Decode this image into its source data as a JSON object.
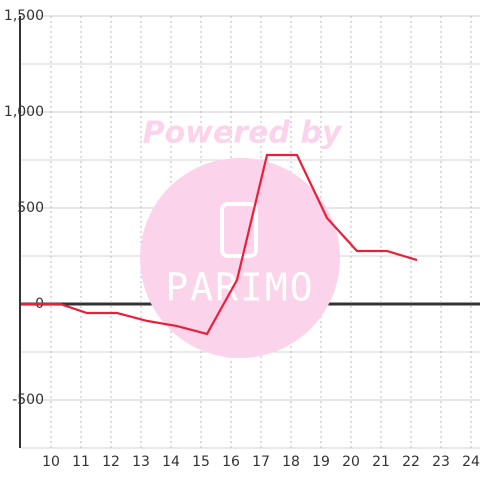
{
  "chart_data": {
    "type": "line",
    "watermark": "Powered by",
    "watermark_logo": "PARIMO",
    "x": [
      9,
      10.3,
      11.2,
      12.2,
      13.2,
      14.2,
      15.2,
      16.2,
      17.2,
      18.2,
      19.2,
      20.2,
      21.2,
      22.2
    ],
    "series": [
      {
        "color": "#e8203a",
        "values": [
          0,
          0,
          -47,
          -47,
          -88,
          -115,
          -156,
          125,
          776,
          776,
          448,
          276,
          276,
          229
        ]
      }
    ],
    "xlim": [
      9,
      24.3
    ],
    "xticks": [
      10,
      11,
      12,
      13,
      14,
      15,
      16,
      17,
      18,
      19,
      20,
      21,
      22,
      23,
      24
    ],
    "ylim": [
      -750,
      1500
    ],
    "yticks": [
      {
        "value": -500,
        "label": "-500"
      },
      0,
      500,
      {
        "value": 1000,
        "label": "1,000"
      },
      {
        "value": 1500,
        "label": "1,500"
      }
    ],
    "y_minor_ticks": [
      -750,
      -250,
      250,
      750,
      1250
    ],
    "grid": true
  }
}
